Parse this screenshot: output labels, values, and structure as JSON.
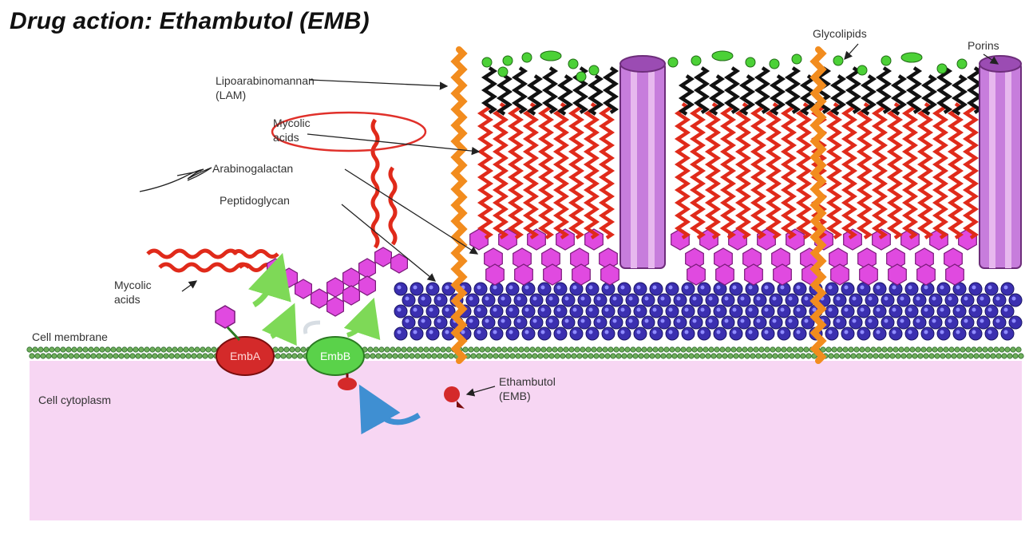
{
  "title": "Drug action: Ethambutol (EMB)",
  "labels": {
    "lam_line1": "Lipoarabinomannan",
    "lam_line2": "(LAM)",
    "mycolic_line1": "Mycolic",
    "mycolic_line2": "acids",
    "arabinogalactan": "Arabinogalactan",
    "peptidoglycan": "Peptidoglycan",
    "mycolic_free_line1": "Mycolic",
    "mycolic_free_line2": "acids",
    "cell_membrane": "Cell membrane",
    "cell_cytoplasm": "Cell cytoplasm",
    "emba": "EmbA",
    "embb": "EmbB",
    "ethambutol_line1": "Ethambutol",
    "ethambutol_line2": "(EMB)",
    "glycolipids": "Glycolipids",
    "porins": "Porins"
  },
  "colors": {
    "cytoplasm": "#f7d6f3",
    "mycolic": "#e02a1a",
    "lipid_black": "#111111",
    "glycolipid_head": "#4cd137",
    "arabinogalactan_hex": "#e04ae0",
    "peptidoglycan": "#3b2fb0",
    "lam": "#f28c1e",
    "porin": "#c77ddc",
    "emba": "#d42a2a",
    "embb": "#5ad24a",
    "membrane": "#2e6b2e",
    "highlight_ring": "#e0302a",
    "blue_arrow": "#3f8fd2",
    "green_arrow": "#7ed957"
  }
}
